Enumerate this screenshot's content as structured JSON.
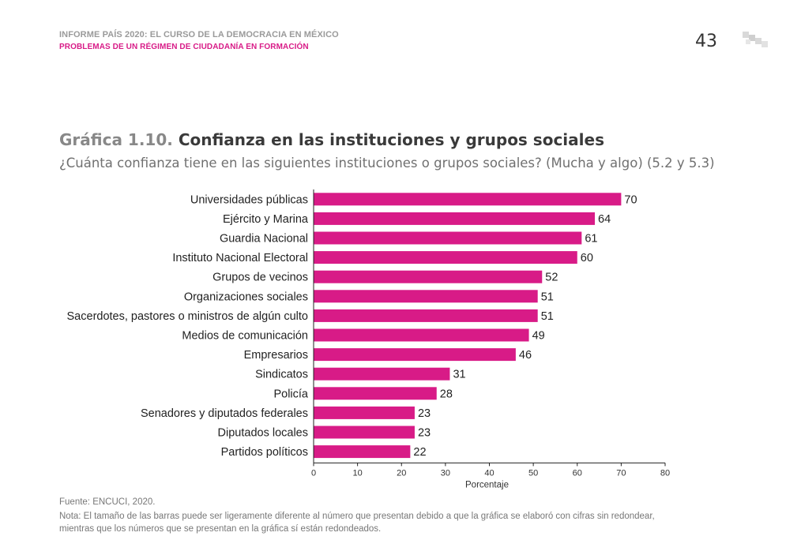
{
  "header": {
    "report": "INFORME PAÍS 2020: EL CURSO DE LA DEMOCRACIA EN MÉXICO",
    "chapter": "PROBLEMAS DE UN RÉGIMEN DE CIUDADANÍA EN FORMACIÓN",
    "page_number": "43"
  },
  "chart_data": {
    "type": "bar",
    "orientation": "horizontal",
    "title_lead": "Gráfica 1.10.",
    "title": "Confianza en las instituciones y grupos sociales",
    "subtitle": "¿Cuánta confianza tiene en las siguientes instituciones o grupos sociales? (Mucha y algo) (5.2 y 5.3)",
    "categories": [
      "Universidades públicas",
      "Ejército y Marina",
      "Guardia Nacional",
      "Instituto Nacional Electoral",
      "Grupos de vecinos",
      "Organizaciones sociales",
      "Sacerdotes, pastores o ministros de algún culto",
      "Medios de comunicación",
      "Empresarios",
      "Sindicatos",
      "Policía",
      "Senadores y diputados federales",
      "Diputados locales",
      "Partidos políticos"
    ],
    "values": [
      70,
      64,
      61,
      60,
      52,
      51,
      51,
      49,
      46,
      31,
      28,
      23,
      23,
      22
    ],
    "xlabel": "Porcentaje",
    "ylabel": "",
    "xlim": [
      0,
      80
    ],
    "xticks": [
      0,
      10,
      20,
      30,
      40,
      50,
      60,
      70,
      80
    ],
    "grid": false,
    "bar_color": "#d81b87"
  },
  "footer": {
    "source": "Fuente: ENCUCI, 2020.",
    "note": "Nota: El tamaño de las barras puede ser ligeramente diferente al número que presentan debido a que la gráfica se elaboró con cifras sin redondear, mientras que los números que se presentan en la gráfica sí están redondeados."
  }
}
